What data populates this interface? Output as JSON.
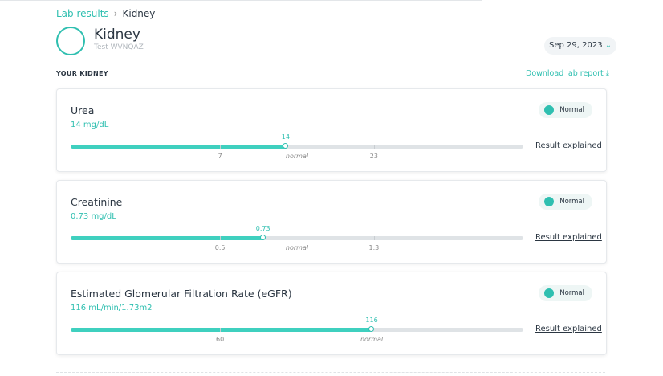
{
  "breadcrumb": {
    "parent": "Lab results",
    "current": "Kidney"
  },
  "header": {
    "title": "Kidney",
    "subtitle": "Test WVNQAZ",
    "date": "Sep 29, 2023"
  },
  "section": {
    "label": "YOUR KIDNEY",
    "download": "Download lab report"
  },
  "cards": [
    {
      "name": "Urea",
      "value": "14 mg/dL",
      "status": "Normal",
      "marker": "14",
      "ticks": [
        "7",
        "normal",
        "23"
      ],
      "link": "Result explained"
    },
    {
      "name": "Creatinine",
      "value": "0.73 mg/dL",
      "status": "Normal",
      "marker": "0.73",
      "ticks": [
        "0.5",
        "normal",
        "1.3"
      ],
      "link": "Result explained"
    },
    {
      "name": "Estimated Glomerular Filtration Rate (eGFR)",
      "value": "116 mL/min/1.73m2",
      "status": "Normal",
      "marker": "116",
      "ticks": [
        "60",
        "normal"
      ],
      "link": "Result explained"
    }
  ]
}
